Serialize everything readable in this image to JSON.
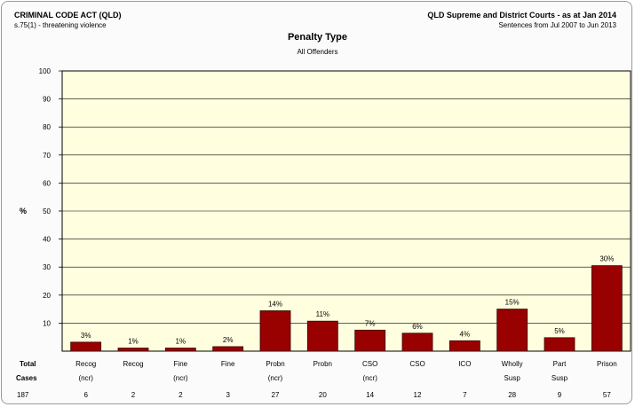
{
  "header": {
    "left_title": "CRIMINAL CODE ACT (QLD)",
    "left_subtitle": "s.75(1) - threatening violence",
    "right_title": "QLD Supreme and District Courts - as at Jan 2014",
    "right_subtitle": "Sentences from Jul 2007 to Jun 2013"
  },
  "colors": {
    "plot_background": "#ffffe0",
    "bar_fill": "#990000",
    "bar_stroke": "#3a0000",
    "grid": "#000000"
  },
  "chart_data": {
    "type": "bar",
    "title": "Penalty Type",
    "subtitle": "All Offenders",
    "ylabel": "%",
    "ylim": [
      0,
      100
    ],
    "yticks": [
      10,
      20,
      30,
      40,
      50,
      60,
      70,
      80,
      90,
      100
    ],
    "grid": true,
    "categories": [
      {
        "line1": "Recog",
        "line2": "(ncr)"
      },
      {
        "line1": "Recog",
        "line2": ""
      },
      {
        "line1": "Fine",
        "line2": "(ncr)"
      },
      {
        "line1": "Fine",
        "line2": ""
      },
      {
        "line1": "Probn",
        "line2": "(ncr)"
      },
      {
        "line1": "Probn",
        "line2": ""
      },
      {
        "line1": "CSO",
        "line2": "(ncr)"
      },
      {
        "line1": "CSO",
        "line2": ""
      },
      {
        "line1": "ICO",
        "line2": ""
      },
      {
        "line1": "Wholly",
        "line2": "Susp"
      },
      {
        "line1": "Part",
        "line2": "Susp"
      },
      {
        "line1": "Prison",
        "line2": ""
      }
    ],
    "values": [
      3.2,
      1.1,
      1.1,
      1.6,
      14.4,
      10.7,
      7.5,
      6.4,
      3.7,
      15.0,
      4.8,
      30.5
    ],
    "value_labels": [
      "3%",
      "1%",
      "1%",
      "2%",
      "14%",
      "11%",
      "7%",
      "6%",
      "4%",
      "15%",
      "5%",
      "30%"
    ],
    "cases": [
      6,
      2,
      2,
      3,
      27,
      20,
      14,
      12,
      7,
      28,
      9,
      57
    ],
    "total_label": "Total",
    "cases_label": "Cases",
    "total_cases": 187
  }
}
